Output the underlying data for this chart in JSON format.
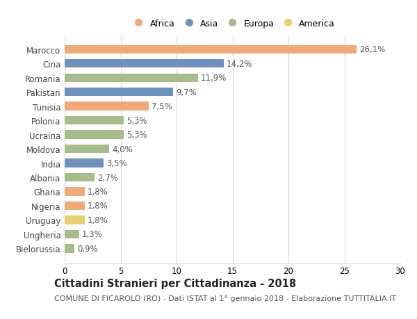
{
  "countries": [
    "Marocco",
    "Cina",
    "Romania",
    "Pakistan",
    "Tunisia",
    "Polonia",
    "Ucraina",
    "Moldova",
    "India",
    "Albania",
    "Ghana",
    "Nigeria",
    "Uruguay",
    "Ungheria",
    "Bielorussia"
  ],
  "values": [
    26.1,
    14.2,
    11.9,
    9.7,
    7.5,
    5.3,
    5.3,
    4.0,
    3.5,
    2.7,
    1.8,
    1.8,
    1.8,
    1.3,
    0.9
  ],
  "categories": [
    "Africa",
    "Asia",
    "Europa",
    "Asia",
    "Africa",
    "Europa",
    "Europa",
    "Europa",
    "Asia",
    "Europa",
    "Africa",
    "Africa",
    "America",
    "Europa",
    "Europa"
  ],
  "colors": {
    "Africa": "#F0AA78",
    "Asia": "#7090BE",
    "Europa": "#A8BB8A",
    "America": "#E8D070"
  },
  "legend_order": [
    "Africa",
    "Asia",
    "Europa",
    "America"
  ],
  "legend_colors": [
    "#F0AA78",
    "#7090BE",
    "#A8BB8A",
    "#E8D070"
  ],
  "xlim": [
    0,
    30
  ],
  "xticks": [
    0,
    5,
    10,
    15,
    20,
    25,
    30
  ],
  "title": "Cittadini Stranieri per Cittadinanza - 2018",
  "subtitle": "COMUNE DI FICAROLO (RO) - Dati ISTAT al 1° gennaio 2018 - Elaborazione TUTTITALIA.IT",
  "bg_color": "#ffffff",
  "grid_color": "#d8d8d8",
  "bar_height": 0.6,
  "label_fontsize": 8.5,
  "ytick_fontsize": 8.5,
  "xtick_fontsize": 8.5,
  "title_fontsize": 10.5,
  "subtitle_fontsize": 8.0,
  "legend_fontsize": 9.0
}
